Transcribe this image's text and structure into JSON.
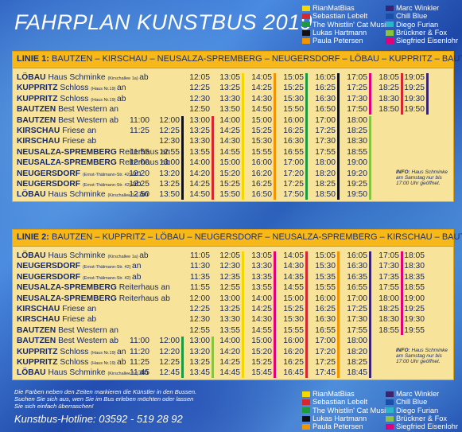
{
  "title": "FAHRPLAN KUNSTBUS 2019",
  "artists": [
    {
      "name": "RianMatBias",
      "color": "#f5d800"
    },
    {
      "name": "Sebastian Lebelt",
      "color": "#d6262e"
    },
    {
      "name": "The Whistlin' Cat Music",
      "color": "#1d9a3d"
    },
    {
      "name": "Lukas Hartmann",
      "color": "#111111"
    },
    {
      "name": "Paula Petersen",
      "color": "#f29400"
    },
    {
      "name": "Marc Winkler",
      "color": "#3a2470"
    },
    {
      "name": "Chill Blue",
      "color": "#1a4fa8"
    },
    {
      "name": "Diego Furian",
      "color": "#2bb5c8"
    },
    {
      "name": "Brückner & Fox",
      "color": "#8ac43f"
    },
    {
      "name": "Siegfried Eisenlohr",
      "color": "#e2007a"
    }
  ],
  "line1": {
    "label": "LINIE 1:",
    "route": "BAUTZEN – KIRSCHAU – NEUSALZA-SPREMBERG – NEUGERSDORF – LÖBAU – KUPPRITZ – BAUTZEN",
    "rows": [
      {
        "town": "LÖBAU",
        "place": "Haus Schminke",
        "addr": "(Kirschallee 1a)",
        "dir": "ab",
        "times": [
          "",
          "",
          "12:05",
          "13:05",
          "14:05",
          "15:05",
          "16:05",
          "17:05",
          "18:05",
          "19:05"
        ]
      },
      {
        "town": "KUPPRITZ",
        "place": "Schloss",
        "addr": "(Haus Nr.19)",
        "dir": "an",
        "times": [
          "",
          "",
          "12:25",
          "13:25",
          "14:25",
          "15:25",
          "16:25",
          "17:25",
          "18:25",
          "19:25"
        ]
      },
      {
        "town": "KUPPRITZ",
        "place": "Schloss",
        "addr": "(Haus Nr.19)",
        "dir": "ab",
        "times": [
          "",
          "",
          "12:30",
          "13:30",
          "14:30",
          "15:30",
          "16:30",
          "17:30",
          "18:30",
          "19:30"
        ]
      },
      {
        "town": "BAUTZEN",
        "place": "Best Western",
        "addr": "",
        "dir": "an",
        "times": [
          "",
          "",
          "12:50",
          "13:50",
          "14:50",
          "15:50",
          "16:50",
          "17:50",
          "18:50",
          "19:50"
        ]
      },
      {
        "town": "BAUTZEN",
        "place": "Best Western",
        "addr": "",
        "dir": "ab",
        "times": [
          "11:00",
          "12:00",
          "13:00",
          "14:00",
          "15:00",
          "16:00",
          "17:00",
          "18:00",
          "",
          ""
        ]
      },
      {
        "town": "KIRSCHAU",
        "place": "Friese",
        "addr": "",
        "dir": "an",
        "times": [
          "11:25",
          "12:25",
          "13:25",
          "14:25",
          "15:25",
          "16:25",
          "17:25",
          "18:25",
          "",
          ""
        ]
      },
      {
        "town": "KIRSCHAU",
        "place": "Friese",
        "addr": "",
        "dir": "ab",
        "times": [
          "",
          "12:30",
          "13:30",
          "14:30",
          "15:30",
          "16:30",
          "17:30",
          "18:30",
          "",
          ""
        ]
      },
      {
        "town": "NEUSALZA-SPREMBERG",
        "place": "Reiterhaus",
        "addr": "",
        "dir": "an",
        "times": [
          "11:55",
          "12:55",
          "13:55",
          "14:55",
          "15:55",
          "16:55",
          "17:55",
          "18:55",
          "",
          ""
        ]
      },
      {
        "town": "NEUSALZA-SPREMBERG",
        "place": "Reiterhaus",
        "addr": "",
        "dir": "ab",
        "times": [
          "12:00",
          "13:00",
          "14:00",
          "15:00",
          "16:00",
          "17:00",
          "18:00",
          "19:00",
          "",
          ""
        ]
      },
      {
        "town": "NEUGERSDORF",
        "place": "",
        "addr": "(Ernst-Thälmann-Str. 42)",
        "dir": "an",
        "times": [
          "12:20",
          "13:20",
          "14:20",
          "15:20",
          "16:20",
          "17:20",
          "18:20",
          "19:20",
          "",
          ""
        ]
      },
      {
        "town": "NEUGERSDORF",
        "place": "",
        "addr": "(Ernst-Thälmann-Str. 42)",
        "dir": "ab",
        "times": [
          "12:25",
          "13:25",
          "14:25",
          "15:25",
          "16:25",
          "17:25",
          "18:25",
          "19:25",
          "",
          ""
        ]
      },
      {
        "town": "LÖBAU",
        "place": "Haus Schminke",
        "addr": "(Kirschallee 1a)",
        "dir": "an",
        "times": [
          "12:50",
          "13:50",
          "14:50",
          "15:50",
          "16:50",
          "17:50",
          "18:50",
          "19:50",
          "",
          ""
        ]
      }
    ],
    "info": {
      "label": "INFO:",
      "text": "Haus Schminke am Samstag nur bis 17:00 Uhr geöffnet."
    }
  },
  "line2": {
    "label": "LINIE 2:",
    "route": "BAUTZEN – KUPPRITZ – LÖBAU – NEUGERSDORF – NEUSALZA-SPREMBERG – KIRSCHAU – BAUTZEN",
    "rows": [
      {
        "town": "LÖBAU",
        "place": "Haus Schminke",
        "addr": "(Kirschallee 1a)",
        "dir": "ab",
        "times": [
          "",
          "",
          "11:05",
          "12:05",
          "13:05",
          "14:05",
          "15:05",
          "16:05",
          "17:05",
          "18:05"
        ]
      },
      {
        "town": "NEUGERSDORF",
        "place": "",
        "addr": "(Ernst-Thälmann-Str. 42)",
        "dir": "an",
        "times": [
          "",
          "",
          "11:30",
          "12:30",
          "13:30",
          "14:30",
          "15:30",
          "16:30",
          "17:30",
          "18:30"
        ]
      },
      {
        "town": "NEUGERSDORF",
        "place": "",
        "addr": "(Ernst-Thälmann-Str. 42)",
        "dir": "ab",
        "times": [
          "",
          "",
          "11:35",
          "12:35",
          "13:35",
          "14:35",
          "15:35",
          "16:35",
          "17:35",
          "18:35"
        ]
      },
      {
        "town": "NEUSALZA-SPREMBERG",
        "place": "Reiterhaus",
        "addr": "",
        "dir": "an",
        "times": [
          "",
          "",
          "11:55",
          "12:55",
          "13:55",
          "14:55",
          "15:55",
          "16:55",
          "17:55",
          "18:55"
        ]
      },
      {
        "town": "NEUSALZA-SPREMBERG",
        "place": "Reiterhaus",
        "addr": "",
        "dir": "ab",
        "times": [
          "",
          "",
          "12:00",
          "13:00",
          "14:00",
          "15:00",
          "16:00",
          "17:00",
          "18:00",
          "19:00"
        ]
      },
      {
        "town": "KIRSCHAU",
        "place": "Friese",
        "addr": "",
        "dir": "an",
        "times": [
          "",
          "",
          "12:25",
          "13:25",
          "14:25",
          "15:25",
          "16:25",
          "17:25",
          "18:25",
          "19:25"
        ]
      },
      {
        "town": "KIRSCHAU",
        "place": "Friese",
        "addr": "",
        "dir": "ab",
        "times": [
          "",
          "",
          "12:30",
          "13:30",
          "14:30",
          "15:30",
          "16:30",
          "17:30",
          "18:30",
          "19:30"
        ]
      },
      {
        "town": "BAUTZEN",
        "place": "Best Western",
        "addr": "",
        "dir": "an",
        "times": [
          "",
          "",
          "12:55",
          "13:55",
          "14:55",
          "15:55",
          "16:55",
          "17:55",
          "18:55",
          "19:55"
        ]
      },
      {
        "town": "BAUTZEN",
        "place": "Best Western",
        "addr": "",
        "dir": "ab",
        "times": [
          "11:00",
          "12:00",
          "13:00",
          "14:00",
          "15:00",
          "16:00",
          "17:00",
          "18:00",
          "",
          ""
        ]
      },
      {
        "town": "KUPPRITZ",
        "place": "Schloss",
        "addr": "(Haus Nr.19)",
        "dir": "an",
        "times": [
          "11:20",
          "12:20",
          "13:20",
          "14:20",
          "15:20",
          "16:20",
          "17:20",
          "18:20",
          "",
          ""
        ]
      },
      {
        "town": "KUPPRITZ",
        "place": "Schloss",
        "addr": "(Haus Nr.19)",
        "dir": "ab",
        "times": [
          "11:25",
          "12:25",
          "13:25",
          "14:25",
          "15:25",
          "16:25",
          "17:25",
          "18:25",
          "",
          ""
        ]
      },
      {
        "town": "LÖBAU",
        "place": "Haus Schminke",
        "addr": "(Kirschallee 1a)",
        "dir": "an",
        "times": [
          "11:45",
          "12:45",
          "13:45",
          "14:45",
          "15:45",
          "16:45",
          "17:45",
          "18:45",
          "",
          ""
        ]
      }
    ],
    "info": {
      "label": "INFO:",
      "text": "Haus Schminke am Samstag nur bis 17:00 Uhr geöffnet."
    }
  },
  "notes": [
    "Die Farben neben den Zeiten markieren die Künstler in den Bussen.",
    "Suchen Sie sich aus, wen Sie im Bus erleben möchten oder lassen",
    "Sie sich einfach überraschen!"
  ],
  "hotline": "Kunstbus-Hotline: 03592 - 519 28 92"
}
